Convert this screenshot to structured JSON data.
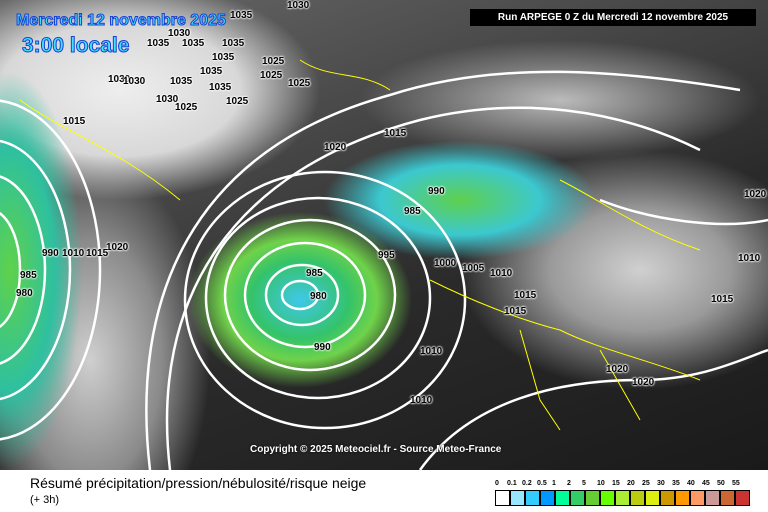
{
  "header": {
    "date": "Mercredi 12 novembre 2025",
    "hour": "3:00 locale",
    "run": "Run ARPEGE 0 Z du Mercredi 12 novembre 2025"
  },
  "copyright": "Copyright © 2025 Meteociel.fr - Source Meteo-France",
  "footer": {
    "title": "Résumé précipitation/pression/nébulosité/risque neige",
    "subtitle": "(+ 3h)"
  },
  "legend": {
    "labels": [
      "0",
      "0.1",
      "0.2",
      "0.5",
      "1",
      "2",
      "5",
      "10",
      "15",
      "20",
      "25",
      "30",
      "35",
      "40",
      "45",
      "50",
      "55"
    ],
    "colors": [
      "#ffffff",
      "#99e6ff",
      "#33ccff",
      "#0099ff",
      "#00ff99",
      "#33cc66",
      "#66cc33",
      "#66ff00",
      "#aaee33",
      "#bbcc11",
      "#ddee11",
      "#cc9900",
      "#ff9900",
      "#ff9966",
      "#cc9999",
      "#cc6633",
      "#cc3333"
    ]
  },
  "pressure_labels": [
    "1030",
    "1035",
    "1030",
    "1035",
    "1035",
    "1035",
    "1035",
    "1035",
    "1025",
    "1025",
    "1030",
    "1030",
    "1035",
    "1035",
    "1025",
    "1030",
    "1025",
    "1025",
    "1015",
    "1015",
    "1020",
    "990",
    "985",
    "995",
    "1000",
    "1005",
    "1010",
    "1015",
    "1015",
    "1020",
    "1010",
    "1015",
    "985",
    "980",
    "990",
    "1010",
    "1010",
    "1020",
    "1020",
    "1020",
    "1015",
    "985",
    "980",
    "990",
    "1010"
  ],
  "colors": {
    "isobar": "#ffffff",
    "coastline": "#ffff00",
    "title_text": "#40e0ff"
  }
}
